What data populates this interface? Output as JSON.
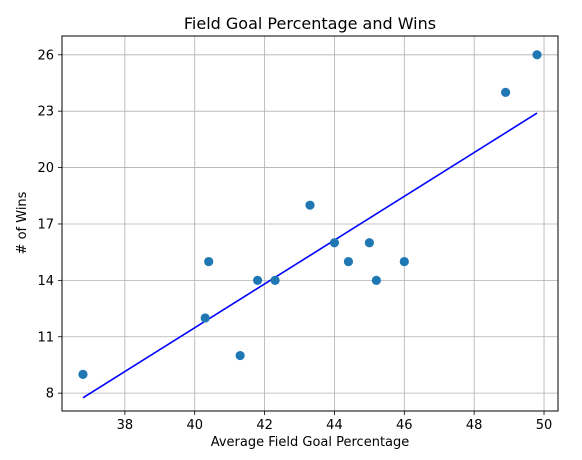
{
  "chart_data": {
    "type": "scatter",
    "title": "Field Goal Percentage and Wins",
    "xlabel": "Average Field Goal Percentage",
    "ylabel": "# of Wins",
    "xlim": [
      36.2,
      50.4
    ],
    "ylim": [
      7.05,
      27.0
    ],
    "xticks": [
      38,
      40,
      42,
      44,
      46,
      48,
      50
    ],
    "yticks": [
      8,
      11,
      14,
      17,
      20,
      23,
      26
    ],
    "grid": true,
    "point_color": "#1f77b4",
    "line_color": "#0000ff",
    "points": [
      {
        "x": 36.8,
        "y": 9
      },
      {
        "x": 40.3,
        "y": 12
      },
      {
        "x": 40.4,
        "y": 15
      },
      {
        "x": 41.3,
        "y": 10
      },
      {
        "x": 41.8,
        "y": 14
      },
      {
        "x": 42.3,
        "y": 14
      },
      {
        "x": 43.3,
        "y": 18
      },
      {
        "x": 44.0,
        "y": 16
      },
      {
        "x": 44.4,
        "y": 15
      },
      {
        "x": 45.0,
        "y": 16
      },
      {
        "x": 45.2,
        "y": 14
      },
      {
        "x": 46.0,
        "y": 15
      },
      {
        "x": 48.9,
        "y": 24
      },
      {
        "x": 49.8,
        "y": 26
      }
    ],
    "trendline": {
      "x": [
        36.8,
        49.8
      ],
      "y": [
        7.75,
        22.9
      ]
    }
  }
}
